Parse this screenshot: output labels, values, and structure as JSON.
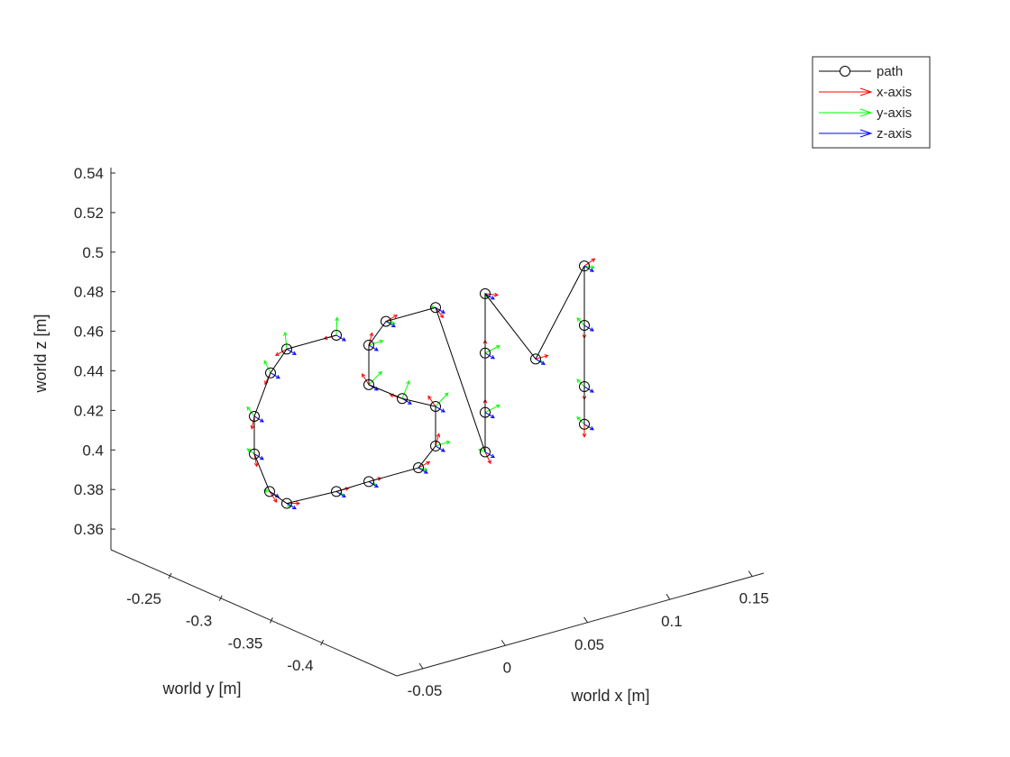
{
  "chart_data": {
    "type": "scatter3d",
    "title": "",
    "xlabel": "world x [m]",
    "ylabel": "world y [m]",
    "zlabel": "world z [m]",
    "x_ticks": [
      "-0.05",
      "0",
      "0.05",
      "0.1",
      "0.15"
    ],
    "y_ticks": [
      "-0.25",
      "-0.3",
      "-0.35",
      "-0.4"
    ],
    "z_ticks": [
      "0.54",
      "0.52",
      "0.5",
      "0.48",
      "0.46",
      "0.44",
      "0.42",
      "0.4",
      "0.38",
      "0.36"
    ],
    "zlim": [
      0.35,
      0.55
    ],
    "grid": false,
    "legend_position": "top-right",
    "legend": [
      {
        "label": "path",
        "color": "#000000",
        "marker": "circle"
      },
      {
        "label": "x-axis",
        "color": "#ff0000",
        "marker": "arrow"
      },
      {
        "label": "y-axis",
        "color": "#00ff00",
        "marker": "arrow"
      },
      {
        "label": "z-axis",
        "color": "#0000ff",
        "marker": "arrow"
      }
    ],
    "path_z": [
      0.458,
      0.451,
      0.439,
      0.417,
      0.398,
      0.379,
      0.373,
      0.379,
      0.384,
      0.391,
      0.402,
      0.422,
      0.426,
      0.433,
      0.453,
      0.465,
      0.472,
      0.399,
      0.419,
      0.449,
      0.479,
      0.446,
      0.493,
      0.463,
      0.432,
      0.413
    ]
  }
}
